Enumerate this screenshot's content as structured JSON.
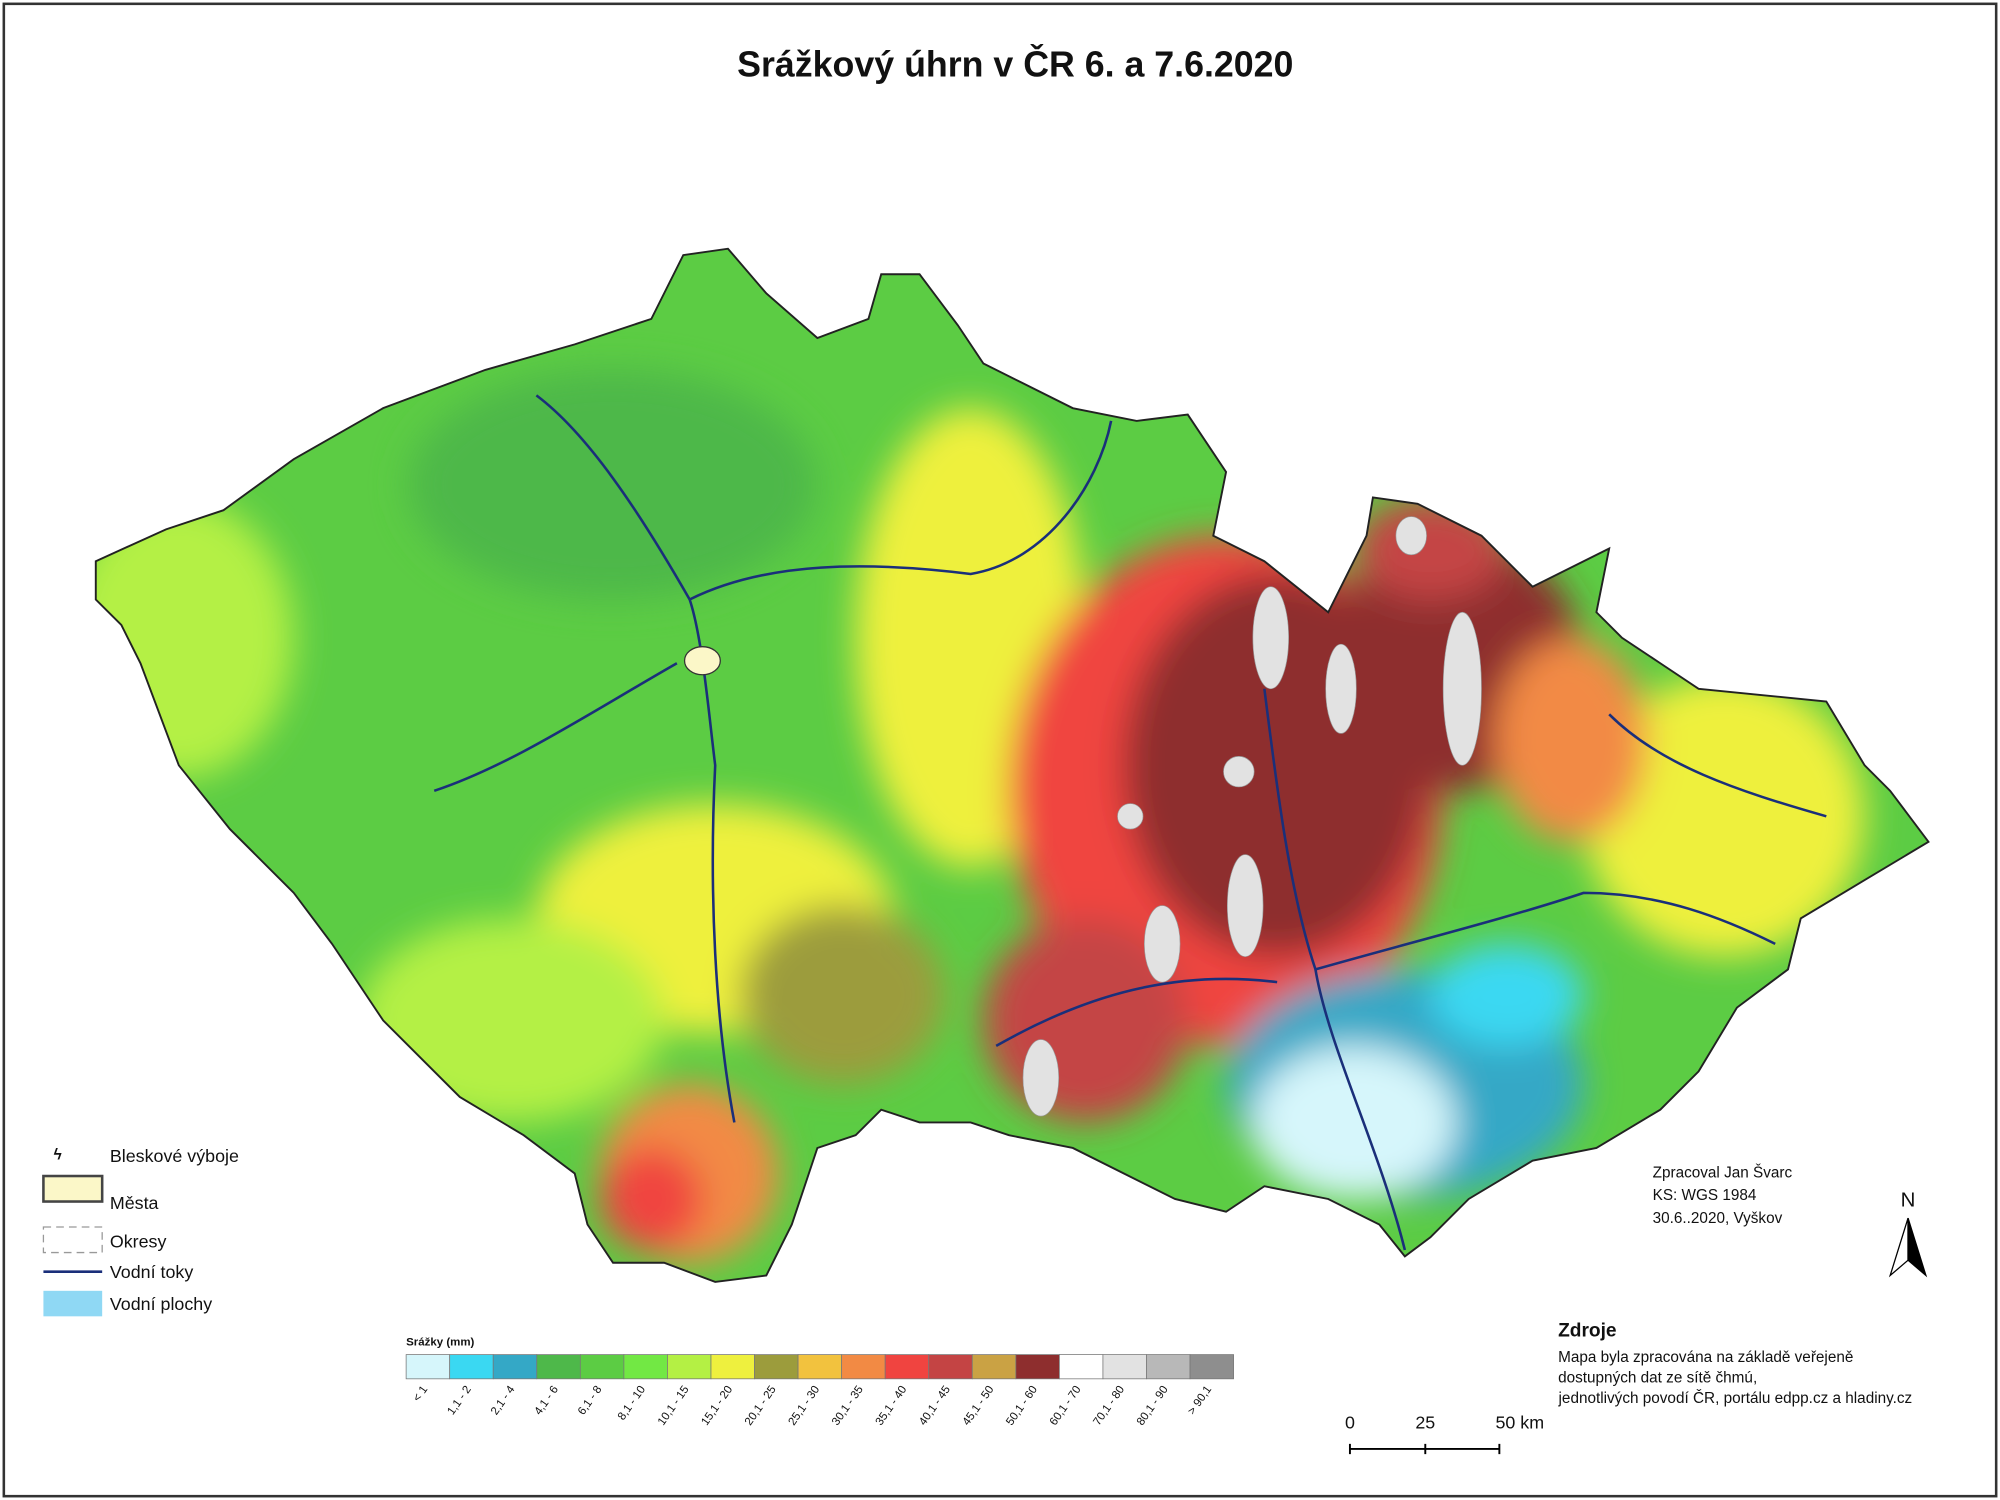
{
  "title": "Srážkový úhrn v ČR 6. a 7.6.2020",
  "layers_legend": [
    "Bleskové výboje",
    "Města",
    "Okresy",
    "Vodní toky",
    "Vodní plochy"
  ],
  "precip_scale": {
    "title": "Srážky (mm)",
    "classes": [
      {
        "label": "< 1",
        "color": "#d6f6fb"
      },
      {
        "label": "1,1 - 2",
        "color": "#3ad8f2"
      },
      {
        "label": "2,1 - 4",
        "color": "#34a8c6"
      },
      {
        "label": "4,1 - 6",
        "color": "#4eb84a"
      },
      {
        "label": "6,1 - 8",
        "color": "#5ccc44"
      },
      {
        "label": "8,1 - 10",
        "color": "#72e844"
      },
      {
        "label": "10,1 - 15",
        "color": "#b4f044"
      },
      {
        "label": "15,1 - 20",
        "color": "#eef03e"
      },
      {
        "label": "20,1 - 25",
        "color": "#9c9c3c"
      },
      {
        "label": "25,1 - 30",
        "color": "#f2c23e"
      },
      {
        "label": "30,1 - 35",
        "color": "#f28a44"
      },
      {
        "label": "35,1 - 40",
        "color": "#f04440"
      },
      {
        "label": "40,1 - 45",
        "color": "#c44444"
      },
      {
        "label": "45,1 - 50",
        "color": "#caa244"
      },
      {
        "label": "50,1 - 60",
        "color": "#8e2e2e"
      },
      {
        "label": "60,1 - 70",
        "color": "#ffffff"
      },
      {
        "label": "70,1 - 80",
        "color": "#e2e2e2"
      },
      {
        "label": "80,1 - 90",
        "color": "#b8b8b8"
      },
      {
        "label": "> 90,1",
        "color": "#8e8e8e"
      }
    ]
  },
  "credits": [
    "Zpracoval Jan Švarc",
    "KS: WGS 1984",
    "30.6..2020, Vyškov"
  ],
  "sources": {
    "heading": "Zdroje",
    "lines": [
      "Mapa byla zpracována na základě veřejeně",
      "dostupných dat ze sítě čhmú,",
      " jednotlivých povodí ČR, portálu edpp.cz a hladiny.cz"
    ]
  },
  "scale_bar": [
    "0",
    "25",
    "50 km"
  ],
  "north": "N"
}
